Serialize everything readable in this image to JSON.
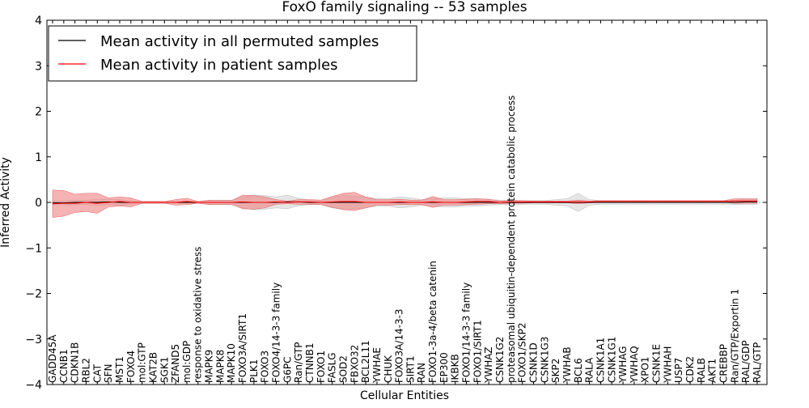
{
  "chart_data": {
    "type": "line",
    "title": "FoxO family signaling -- 53 samples",
    "xlabel": "Cellular Entities",
    "ylabel": "Inferred Activity",
    "ylim": [
      -4,
      4
    ],
    "yticks": [
      -4,
      -3,
      -2,
      -1,
      0,
      1,
      2,
      3,
      4
    ],
    "legend_position": "top-left",
    "categories": [
      "GADD45A",
      "CCNB1",
      "CDKN1B",
      "RBL2",
      "CAT",
      "SFN",
      "MST1",
      "FOXO4",
      "mol:GTP",
      "KAT2B",
      "SGK1",
      "ZFAND5",
      "mol:GDP",
      "response to oxidative stress",
      "MAPK9",
      "MAPK8",
      "MAPK10",
      "FOXO3A/SIRT1",
      "PLK1",
      "FOXO3",
      "FOXO4/14-3-3 family",
      "G6PC",
      "Ran/GTP",
      "CTNNB1",
      "FOXO1",
      "FASLG",
      "SOD2",
      "FBXO32",
      "BCL2L11",
      "YWHAE",
      "CHUK",
      "FOXO3A/14-3-3",
      "SIRT1",
      "RAN",
      "FOXO1-3a-4/beta catenin",
      "EP300",
      "IKBKB",
      "FOXO1/14-3-3 family",
      "FOXO1/SIRT1",
      "YWHAZ",
      "CSNK1G2",
      "proteasomal ubiquitin-dependent protein catabolic process",
      "FOXO1/SKP2",
      "CSNK1D",
      "CSNK1G3",
      "SKP2",
      "YWHAB",
      "BCL6",
      "RALA",
      "CSNK1A1",
      "CSNK1G1",
      "YWHAG",
      "YWHAQ",
      "XPO1",
      "CSNK1E",
      "YWHAH",
      "USP7",
      "CDK2",
      "RALB",
      "AKT1",
      "CREBBP",
      "Ran/GTP/Exportin 1",
      "RAL/GDP",
      "RAL/GTP"
    ],
    "series": [
      {
        "name": "Mean activity in all permuted samples",
        "color": "#000000",
        "values": [
          -0.01,
          -0.01,
          0,
          0,
          0,
          0.01,
          0,
          0,
          0,
          0,
          0,
          0,
          0,
          0,
          0,
          0,
          0,
          0,
          0,
          0,
          0,
          0.01,
          0.01,
          0,
          0,
          0,
          0,
          0,
          0,
          0,
          0,
          0,
          0,
          0,
          0,
          0,
          0,
          0,
          0,
          0,
          0,
          0,
          0,
          0,
          0,
          0,
          0,
          0,
          0,
          0,
          0,
          0,
          0,
          0,
          0,
          0,
          0,
          0,
          0,
          0,
          0,
          0,
          0.01,
          0.01
        ],
        "band": [
          0.04,
          0.04,
          0.05,
          0.05,
          0.06,
          0.06,
          0.06,
          0.04,
          0.02,
          0.02,
          0.02,
          0.02,
          0.02,
          0.02,
          0.04,
          0.05,
          0.05,
          0.12,
          0.16,
          0.15,
          0.12,
          0.15,
          0.08,
          0.05,
          0.05,
          0.12,
          0.15,
          0.14,
          0.12,
          0.08,
          0.08,
          0.12,
          0.1,
          0.06,
          0.08,
          0.1,
          0.1,
          0.08,
          0.08,
          0.06,
          0.05,
          0.05,
          0.04,
          0.04,
          0.04,
          0.06,
          0.08,
          0.2,
          0.06,
          0.04,
          0.04,
          0.04,
          0.04,
          0.04,
          0.04,
          0.04,
          0.04,
          0.04,
          0.04,
          0.04,
          0.04,
          0.05,
          0.05,
          0.05
        ]
      },
      {
        "name": "Mean activity in patient samples",
        "color": "#ff0000",
        "values": [
          -0.03,
          -0.02,
          -0.02,
          0,
          -0.02,
          0,
          0.02,
          0,
          0,
          0,
          0,
          0,
          0.02,
          0,
          0,
          0,
          0,
          0.01,
          0,
          0,
          0.01,
          0,
          0.01,
          0.01,
          0,
          0.01,
          0.02,
          0.02,
          0,
          0,
          0,
          0.01,
          0,
          0,
          0.01,
          0,
          0,
          0.01,
          0.02,
          0.02,
          0,
          0.01,
          0.01,
          0.01,
          0.01,
          0.01,
          0.01,
          0.01,
          0.01,
          0.02,
          0.02,
          0.02,
          0.02,
          0.02,
          0.02,
          0.02,
          0.02,
          0.02,
          0.02,
          0.02,
          0.02,
          0.03,
          0.03,
          0.03
        ],
        "band": [
          0.3,
          0.28,
          0.2,
          0.2,
          0.22,
          0.1,
          0.1,
          0.1,
          0.02,
          0.02,
          0.02,
          0.06,
          0.07,
          0.02,
          0.05,
          0.04,
          0.04,
          0.15,
          0.15,
          0.12,
          0.05,
          0.03,
          0.05,
          0.05,
          0.05,
          0.12,
          0.18,
          0.2,
          0.12,
          0.06,
          0.06,
          0.06,
          0.05,
          0.05,
          0.12,
          0.06,
          0.06,
          0.06,
          0.06,
          0.05,
          0.03,
          0.03,
          0.03,
          0.02,
          0.02,
          0.02,
          0.02,
          0.04,
          0.02,
          0.02,
          0.02,
          0.02,
          0.02,
          0.02,
          0.02,
          0.02,
          0.02,
          0.02,
          0.02,
          0.02,
          0.02,
          0.05,
          0.05,
          0.05
        ]
      }
    ]
  }
}
